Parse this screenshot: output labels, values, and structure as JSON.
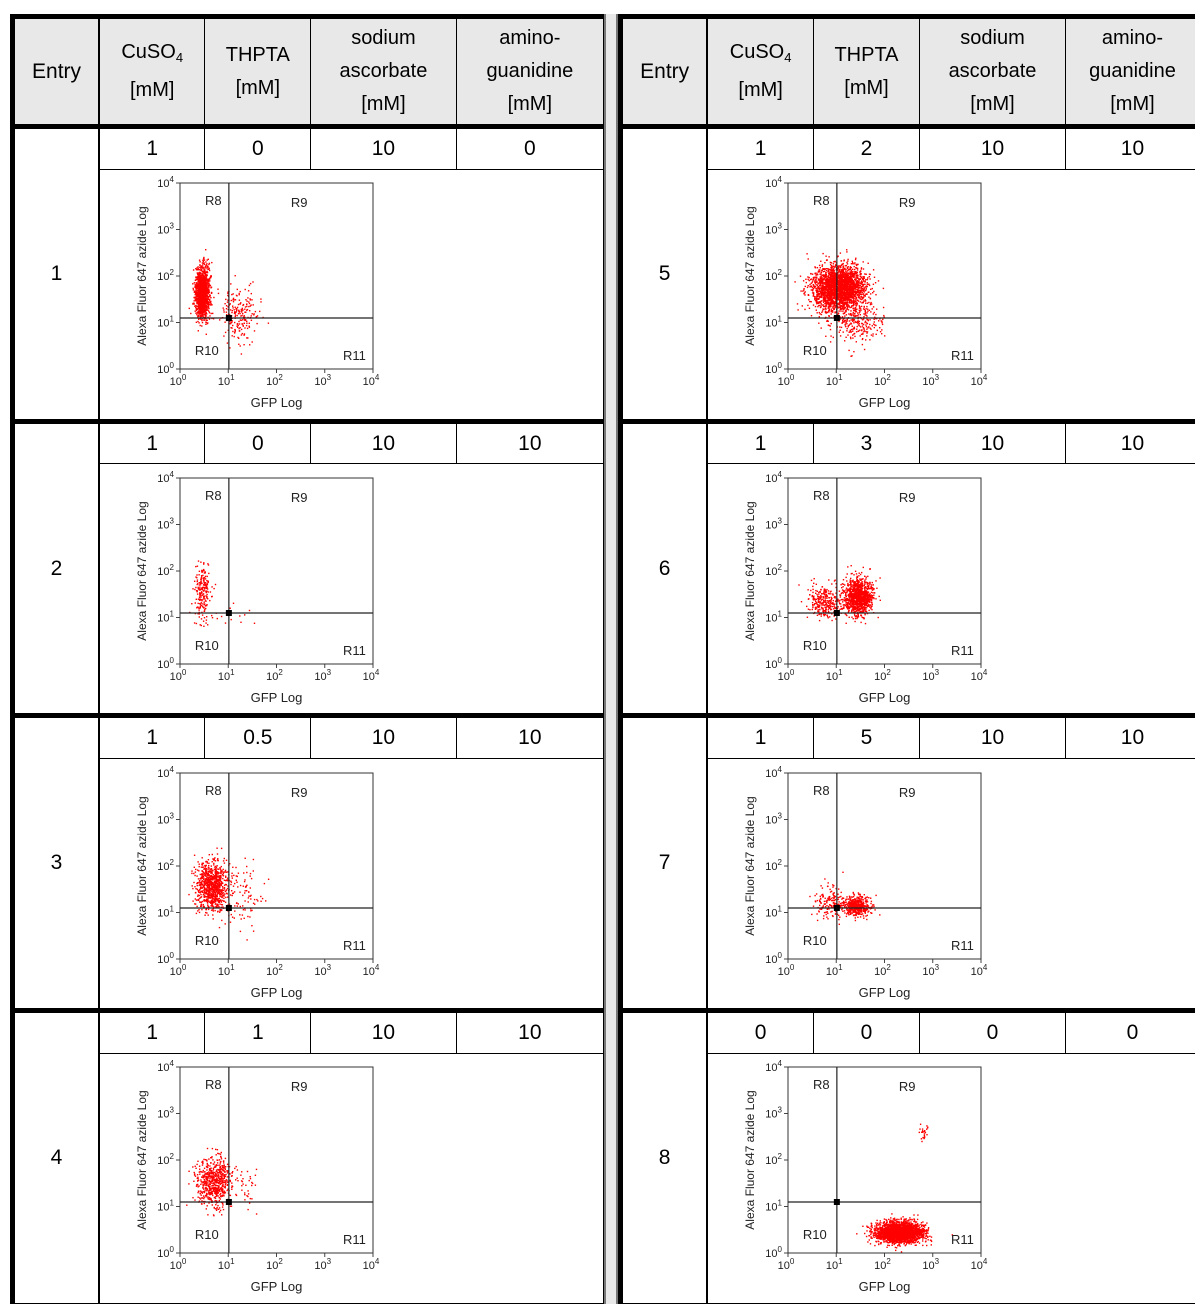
{
  "table": {
    "headers": {
      "entry": "Entry",
      "cuso4_main": "CuSO",
      "cuso4_sub": "4",
      "cuso4_unit": "[mM]",
      "thpta": "THPTA",
      "thpta_unit": "[mM]",
      "ascorbate_1": "sodium",
      "ascorbate_2": "ascorbate",
      "ascorbate_unit": "[mM]",
      "amino_1": "amino-",
      "amino_2": "guanidine",
      "amino_unit": "[mM]"
    },
    "entries": [
      {
        "entry": "1",
        "cuso4": "1",
        "thpta": "0",
        "ascorbate": "10",
        "aminoguanidine": "0"
      },
      {
        "entry": "2",
        "cuso4": "1",
        "thpta": "0",
        "ascorbate": "10",
        "aminoguanidine": "10"
      },
      {
        "entry": "3",
        "cuso4": "1",
        "thpta": "0.5",
        "ascorbate": "10",
        "aminoguanidine": "10"
      },
      {
        "entry": "4",
        "cuso4": "1",
        "thpta": "1",
        "ascorbate": "10",
        "aminoguanidine": "10"
      },
      {
        "entry": "5",
        "cuso4": "1",
        "thpta": "2",
        "ascorbate": "10",
        "aminoguanidine": "10"
      },
      {
        "entry": "6",
        "cuso4": "1",
        "thpta": "3",
        "ascorbate": "10",
        "aminoguanidine": "10"
      },
      {
        "entry": "7",
        "cuso4": "1",
        "thpta": "5",
        "ascorbate": "10",
        "aminoguanidine": "10"
      },
      {
        "entry": "8",
        "cuso4": "0",
        "thpta": "0",
        "ascorbate": "0",
        "aminoguanidine": "0"
      }
    ]
  },
  "plot": {
    "ylabel": "Alexa Fluor 647 azide Log",
    "xlabel": "GFP Log",
    "y_ticks": [
      "10",
      "10",
      "10",
      "10",
      "10"
    ],
    "y_tick_exps": [
      "0",
      "1",
      "2",
      "3",
      "4"
    ],
    "x_ticks": [
      "10",
      "10",
      "10",
      "10",
      "10"
    ],
    "x_tick_exps": [
      "0",
      "1",
      "2",
      "3",
      "4"
    ],
    "regions": {
      "r8": "R8",
      "r9": "R9",
      "r10": "R10",
      "r11": "R11"
    },
    "dot_color": "#ff0000",
    "gate": {
      "x": 10.3,
      "y": 12.5
    },
    "axis_range": {
      "xlim": [
        1,
        10000
      ],
      "ylim": [
        1,
        10000
      ],
      "scale": "log"
    }
  },
  "chart_data": [
    {
      "type": "scatter",
      "entry": "1",
      "clusters": [
        {
          "x_log_center": 0.45,
          "y_log_center": 1.65,
          "x_log_spread": 0.12,
          "y_log_spread": 0.45,
          "count": 1400
        },
        {
          "x_log_center": 1.2,
          "y_log_center": 1.2,
          "x_log_spread": 0.35,
          "y_log_spread": 0.5,
          "count": 220
        }
      ]
    },
    {
      "type": "scatter",
      "entry": "2",
      "clusters": [
        {
          "x_log_center": 0.45,
          "y_log_center": 1.55,
          "x_log_spread": 0.14,
          "y_log_spread": 0.5,
          "count": 220
        },
        {
          "x_log_center": 1.1,
          "y_log_center": 1.1,
          "x_log_spread": 0.3,
          "y_log_spread": 0.25,
          "count": 12
        }
      ]
    },
    {
      "type": "scatter",
      "entry": "3",
      "clusters": [
        {
          "x_log_center": 0.65,
          "y_log_center": 1.6,
          "x_log_spread": 0.28,
          "y_log_spread": 0.45,
          "count": 900
        },
        {
          "x_log_center": 1.3,
          "y_log_center": 1.3,
          "x_log_spread": 0.35,
          "y_log_spread": 0.55,
          "count": 90
        }
      ]
    },
    {
      "type": "scatter",
      "entry": "4",
      "clusters": [
        {
          "x_log_center": 0.7,
          "y_log_center": 1.55,
          "x_log_spread": 0.3,
          "y_log_spread": 0.45,
          "count": 650
        },
        {
          "x_log_center": 1.3,
          "y_log_center": 1.4,
          "x_log_spread": 0.35,
          "y_log_spread": 0.4,
          "count": 40
        }
      ]
    },
    {
      "type": "scatter",
      "entry": "5",
      "clusters": [
        {
          "x_log_center": 1.05,
          "y_log_center": 1.75,
          "x_log_spread": 0.45,
          "y_log_spread": 0.4,
          "count": 2600
        },
        {
          "x_log_center": 1.4,
          "y_log_center": 1.0,
          "x_log_spread": 0.5,
          "y_log_spread": 0.35,
          "count": 250
        }
      ]
    },
    {
      "type": "scatter",
      "entry": "6",
      "clusters": [
        {
          "x_log_center": 1.45,
          "y_log_center": 1.45,
          "x_log_spread": 0.25,
          "y_log_spread": 0.32,
          "count": 1100
        },
        {
          "x_log_center": 0.75,
          "y_log_center": 1.35,
          "x_log_spread": 0.3,
          "y_log_spread": 0.3,
          "count": 300
        }
      ]
    },
    {
      "type": "scatter",
      "entry": "7",
      "clusters": [
        {
          "x_log_center": 1.4,
          "y_log_center": 1.15,
          "x_log_spread": 0.25,
          "y_log_spread": 0.18,
          "count": 500
        },
        {
          "x_log_center": 0.85,
          "y_log_center": 1.25,
          "x_log_spread": 0.3,
          "y_log_spread": 0.3,
          "count": 140
        }
      ]
    },
    {
      "type": "scatter",
      "entry": "8",
      "clusters": [
        {
          "x_log_center": 2.3,
          "y_log_center": 0.45,
          "x_log_spread": 0.4,
          "y_log_spread": 0.18,
          "count": 2600
        },
        {
          "x_log_center": 2.8,
          "y_log_center": 2.55,
          "x_log_spread": 0.08,
          "y_log_spread": 0.15,
          "count": 25
        }
      ]
    }
  ]
}
